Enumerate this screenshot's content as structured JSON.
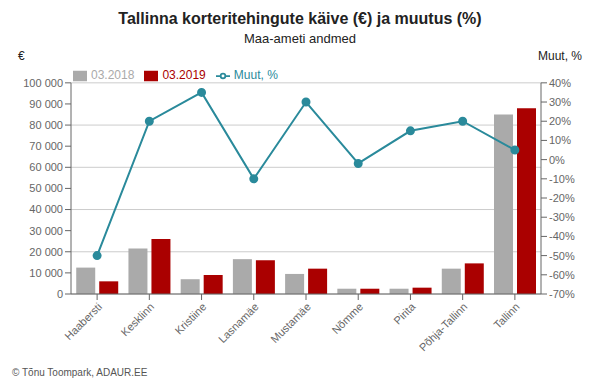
{
  "chart_data": {
    "type": "bar",
    "title": "Tallinna korteritehingute käive (€) ja muutus (%)",
    "subtitle": "Maa-ameti andmed",
    "ylabel": "€",
    "y2label": "Muut, %",
    "annotations": [
      "© Tõnu Toompark, ADAUR.EE"
    ],
    "categories": [
      "Haabersti",
      "Kesklinn",
      "Kristiine",
      "Lasnamäe",
      "Mustamäe",
      "Nõmme",
      "Pirita",
      "Põhja-Tallinn",
      "Tallinn"
    ],
    "series": [
      {
        "name": "03.2018",
        "type": "bar",
        "color": "#aaaaaa",
        "values": [
          12500,
          21500,
          7000,
          16500,
          9500,
          2500,
          2500,
          12000,
          85000
        ]
      },
      {
        "name": "03.2019",
        "type": "bar",
        "color": "#aa0000",
        "values": [
          6000,
          26000,
          9000,
          16000,
          12000,
          2500,
          3000,
          14500,
          88000
        ]
      },
      {
        "name": "Muut, %",
        "type": "line",
        "axis": "y2",
        "color": "#2a8a9b",
        "marker": "circle",
        "line_style": "solid",
        "values": [
          -50,
          20,
          35,
          -10,
          30,
          -2,
          15,
          20,
          5
        ]
      }
    ],
    "ylim": [
      0,
      100000
    ],
    "yticks": [
      0,
      {
        "value": 10000,
        "label": "10 000"
      },
      {
        "value": 20000,
        "label": "20 000"
      },
      {
        "value": 30000,
        "label": "30 000"
      },
      {
        "value": 40000,
        "label": "40 000"
      },
      {
        "value": 50000,
        "label": "50 000"
      },
      {
        "value": 60000,
        "label": "60 000"
      },
      {
        "value": 70000,
        "label": "70 000"
      },
      {
        "value": 80000,
        "label": "80 000"
      },
      {
        "value": 90000,
        "label": "90 000"
      },
      {
        "value": 100000,
        "label": "100 000"
      }
    ],
    "y2lim": [
      -70,
      40
    ],
    "y2ticks": [
      {
        "value": 40,
        "label": "40%"
      },
      {
        "value": 30,
        "label": "30%"
      },
      {
        "value": 20,
        "label": "20%"
      },
      {
        "value": 10,
        "label": "10%"
      },
      {
        "value": 0,
        "label": "0%"
      },
      {
        "value": -10,
        "label": "-10%"
      },
      {
        "value": -20,
        "label": "-20%"
      },
      {
        "value": -30,
        "label": "-30%"
      },
      {
        "value": -40,
        "label": "-40%"
      },
      {
        "value": -50,
        "label": "-50%"
      },
      {
        "value": -60,
        "label": "-60%"
      },
      {
        "value": -70,
        "label": "-70%"
      }
    ],
    "grid": true,
    "legend": "upper left"
  }
}
